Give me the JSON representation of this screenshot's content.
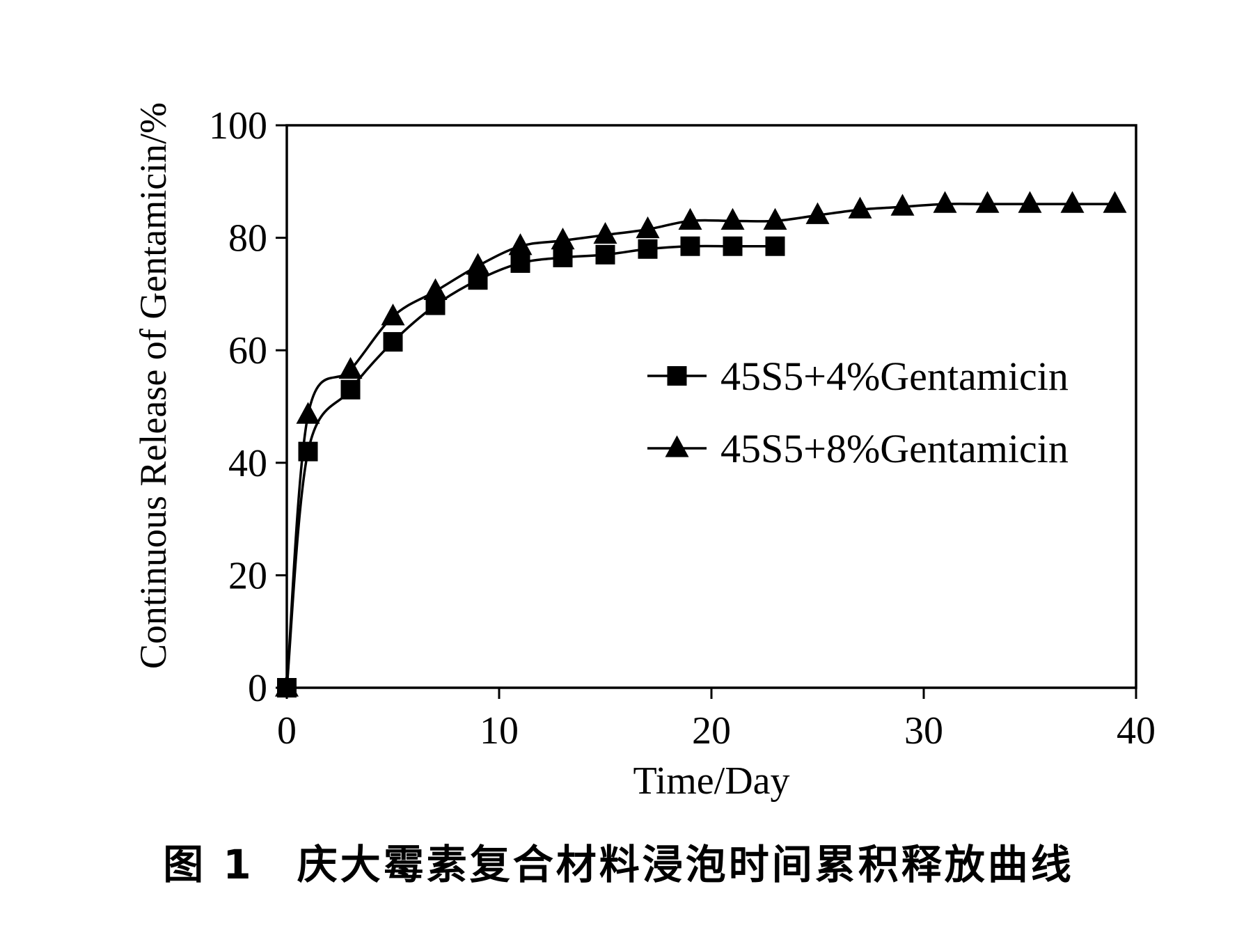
{
  "caption": "图 1　庆大霉素复合材料浸泡时间累积释放曲线",
  "chart_data": {
    "type": "line",
    "xlabel": "Time/Day",
    "ylabel": "Continuous Release of Gentamicin/%",
    "xlim": [
      0,
      40
    ],
    "ylim": [
      0,
      100
    ],
    "xticks": [
      0,
      10,
      20,
      30,
      40
    ],
    "yticks": [
      0,
      20,
      40,
      60,
      80,
      100
    ],
    "legend_position": "center-right",
    "grid": false,
    "series": [
      {
        "name": "45S5+4%Gentamicin",
        "marker": "square",
        "color": "#000000",
        "x": [
          0,
          1,
          3,
          5,
          7,
          9,
          11,
          13,
          15,
          17,
          19,
          21,
          23
        ],
        "y": [
          0,
          42,
          53,
          61.5,
          68,
          72.5,
          75.5,
          76.5,
          77,
          78,
          78.5,
          78.5,
          78.5
        ]
      },
      {
        "name": "45S5+8%Gentamicin",
        "marker": "triangle",
        "color": "#000000",
        "x": [
          0,
          1,
          3,
          5,
          7,
          9,
          11,
          13,
          15,
          17,
          19,
          21,
          23,
          25,
          27,
          29,
          31,
          33,
          35,
          37,
          39
        ],
        "y": [
          0,
          48.5,
          56.5,
          66,
          70.5,
          75,
          78.5,
          79.5,
          80.5,
          81.5,
          83,
          83,
          83,
          84,
          85,
          85.5,
          86,
          86,
          86,
          86,
          86
        ]
      }
    ]
  }
}
